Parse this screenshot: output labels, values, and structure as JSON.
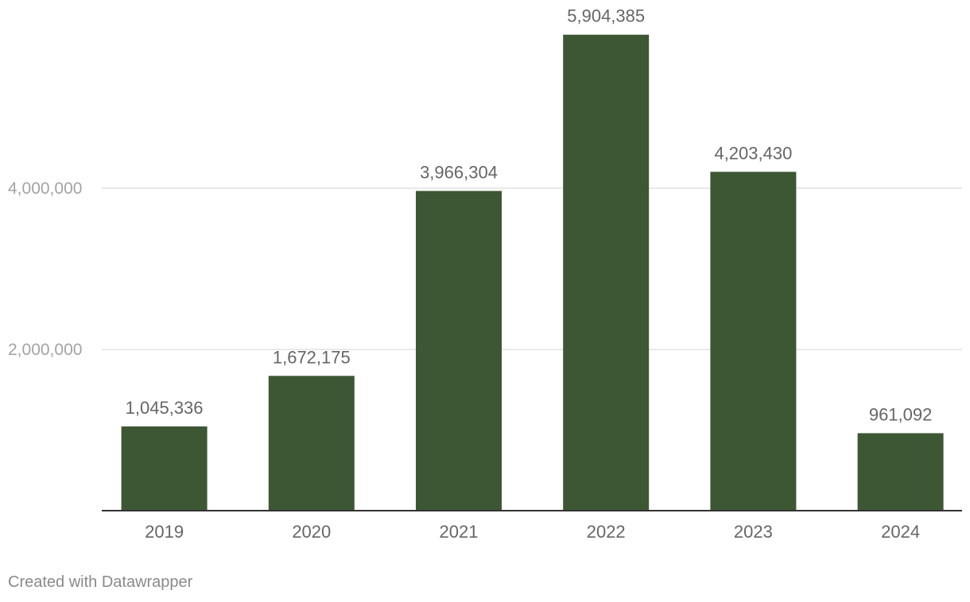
{
  "chart_data": {
    "type": "bar",
    "title": "",
    "xlabel": "",
    "ylabel": "",
    "categories": [
      "2019",
      "2020",
      "2021",
      "2022",
      "2023",
      "2024"
    ],
    "values": [
      1045336,
      1672175,
      3966304,
      5904385,
      4203430,
      961092
    ],
    "value_labels": [
      "1,045,336",
      "1,672,175",
      "3,966,304",
      "5,904,385",
      "4,203,430",
      "961,092"
    ],
    "yticks": [
      2000000,
      4000000
    ],
    "ytick_labels": [
      "2,000,000",
      "4,000,000"
    ],
    "ylim": [
      0,
      6000000
    ],
    "grid": true,
    "bar_color": "#3d5734"
  },
  "footer": {
    "credit": "Created with Datawrapper"
  }
}
